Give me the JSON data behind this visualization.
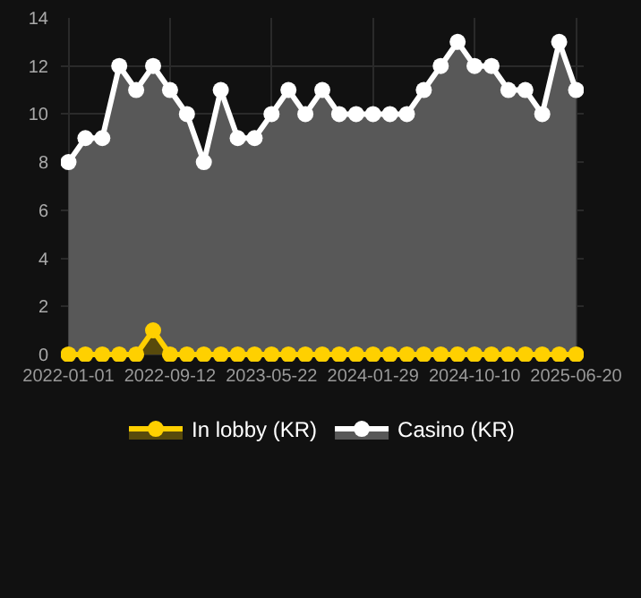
{
  "chart_data": {
    "type": "area",
    "categories": [
      "2022-01-01",
      null,
      null,
      null,
      null,
      null,
      "2022-09-12",
      null,
      null,
      null,
      null,
      null,
      "2023-05-22",
      null,
      null,
      null,
      null,
      null,
      "2024-01-29",
      null,
      null,
      null,
      null,
      null,
      "2024-10-10",
      null,
      null,
      null,
      null,
      null,
      "2025-06-20"
    ],
    "series": [
      {
        "name": "In lobby (KR)",
        "color": "#ffd000",
        "values": [
          0,
          0,
          0,
          0,
          0,
          1,
          0,
          0,
          0,
          0,
          0,
          0,
          0,
          0,
          0,
          0,
          0,
          0,
          0,
          0,
          0,
          0,
          0,
          0,
          0,
          0,
          0,
          0,
          0,
          0,
          0
        ]
      },
      {
        "name": "Casino (KR)",
        "color": "#ffffff",
        "values": [
          8,
          9,
          9,
          12,
          11,
          12,
          11,
          10,
          8,
          11,
          9,
          9,
          10,
          11,
          10,
          11,
          10,
          10,
          10,
          10,
          10,
          11,
          12,
          13,
          12,
          12,
          11,
          11,
          10,
          13,
          11
        ]
      }
    ],
    "ylim": [
      0,
      14
    ],
    "yticks": [
      0,
      2,
      4,
      6,
      8,
      10,
      12,
      14
    ],
    "grid": true,
    "legend": "bottom",
    "marker": "circle",
    "line_style": "solid"
  }
}
